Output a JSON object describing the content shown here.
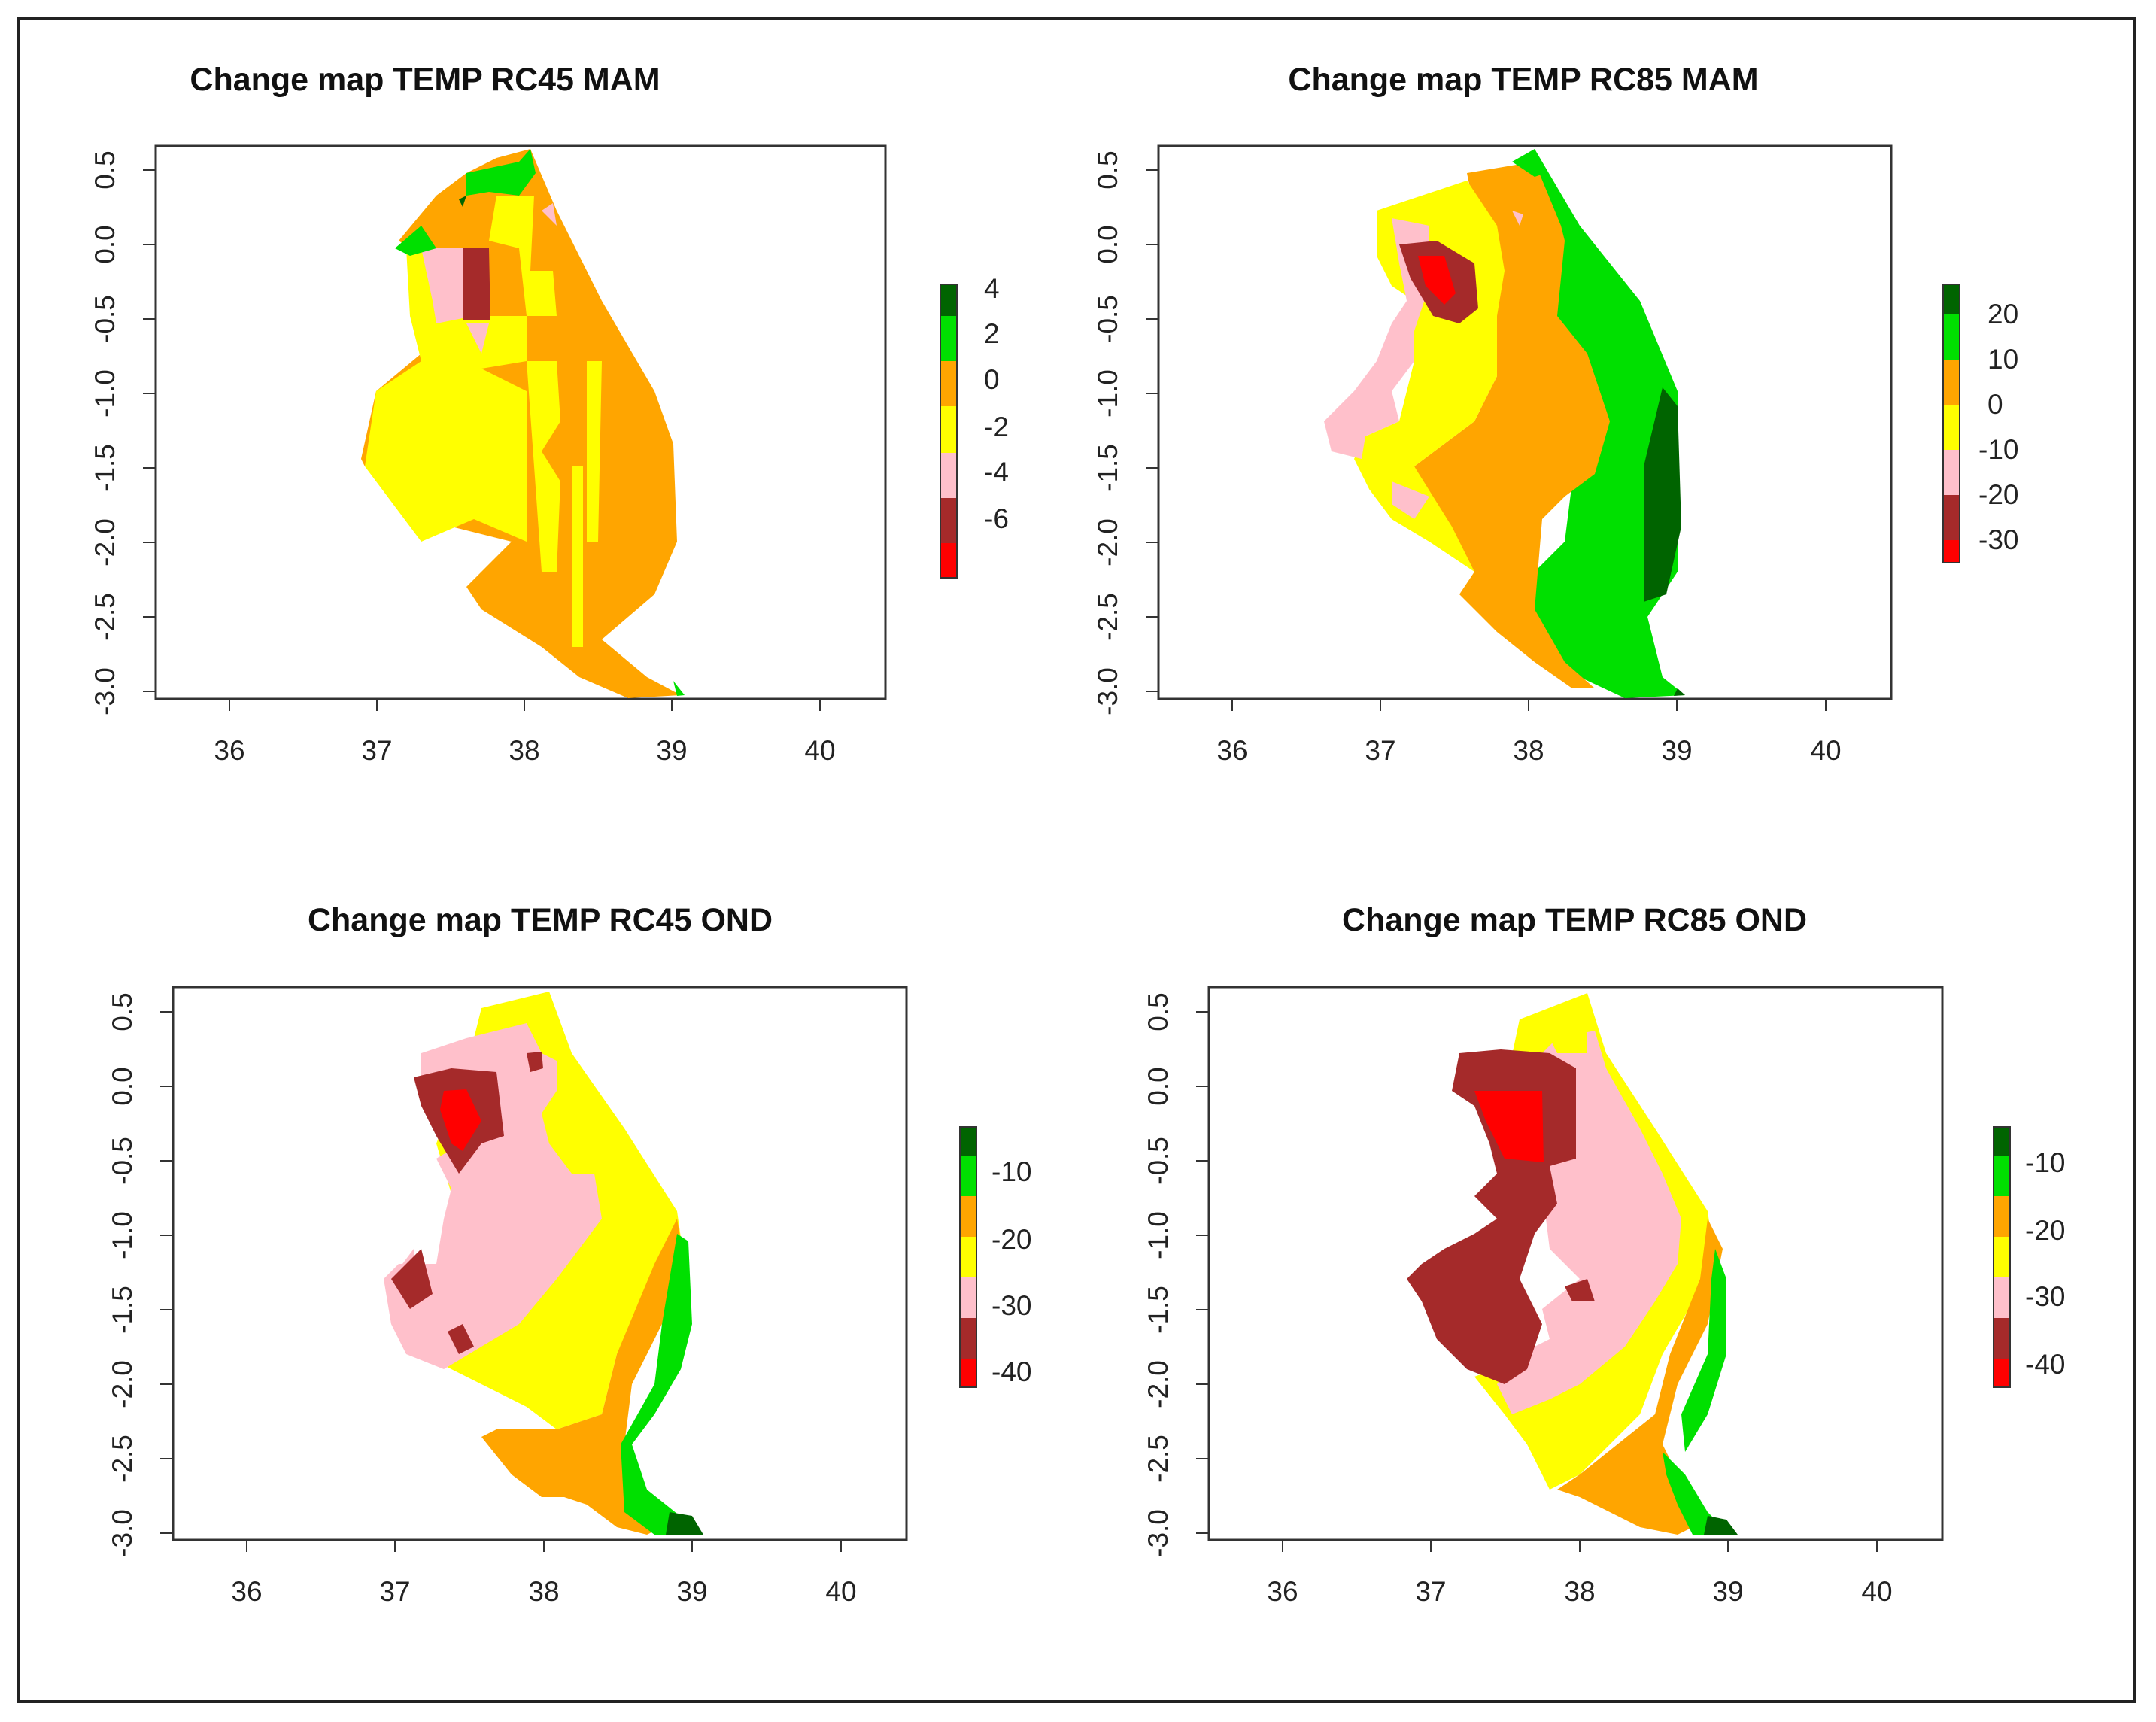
{
  "figure": {
    "description_free": true,
    "panels": [
      {
        "id": "rc45-mam",
        "title": "Change map TEMP RC45 MAM",
        "x_ticks": [
          "36",
          "37",
          "38",
          "39",
          "40"
        ],
        "y_ticks": [
          "0.5",
          "0.0",
          "-0.5",
          "-1.0",
          "-1.5",
          "-2.0",
          "-2.5",
          "-3.0"
        ],
        "legend_labels": [
          "4",
          "2",
          "0",
          "-2",
          "-4",
          "-6"
        ],
        "legend_colors": [
          "#006400",
          "#00e000",
          "#ffa500",
          "#ffff00",
          "#ffc0cb",
          "#a52a2a",
          "#ff0000"
        ]
      },
      {
        "id": "rc85-mam",
        "title": "Change map TEMP RC85 MAM",
        "x_ticks": [
          "36",
          "37",
          "38",
          "39",
          "40"
        ],
        "y_ticks": [
          "0.5",
          "0.0",
          "-0.5",
          "-1.0",
          "-1.5",
          "-2.0",
          "-2.5",
          "-3.0"
        ],
        "legend_labels": [
          "20",
          "10",
          "0",
          "-10",
          "-20",
          "-30"
        ],
        "legend_colors": [
          "#006400",
          "#00e000",
          "#ffa500",
          "#ffff00",
          "#ffc0cb",
          "#a52a2a",
          "#ff0000"
        ]
      },
      {
        "id": "rc45-ond",
        "title": "Change map TEMP RC45 OND",
        "x_ticks": [
          "36",
          "37",
          "38",
          "39",
          "40"
        ],
        "y_ticks": [
          "0.5",
          "0.0",
          "-0.5",
          "-1.0",
          "-1.5",
          "-2.0",
          "-2.5",
          "-3.0"
        ],
        "legend_labels": [
          "-10",
          "-20",
          "-30",
          "-40"
        ],
        "legend_colors": [
          "#006400",
          "#00e000",
          "#ffa500",
          "#ffff00",
          "#ffc0cb",
          "#a52a2a",
          "#ff0000"
        ]
      },
      {
        "id": "rc85-ond",
        "title": "Change map TEMP RC85 OND",
        "x_ticks": [
          "36",
          "37",
          "38",
          "39",
          "40"
        ],
        "y_ticks": [
          "0.5",
          "0.0",
          "-0.5",
          "-1.0",
          "-1.5",
          "-2.0",
          "-2.5",
          "-3.0"
        ],
        "legend_labels": [
          "-10",
          "-20",
          "-30",
          "-40"
        ],
        "legend_colors": [
          "#006400",
          "#00e000",
          "#ffa500",
          "#ffff00",
          "#ffc0cb",
          "#a52a2a",
          "#ff0000"
        ]
      }
    ]
  },
  "palette": {
    "dark_green": "#006400",
    "green": "#00e000",
    "orange": "#ffa500",
    "yellow": "#ffff00",
    "pink": "#ffc0cb",
    "brown": "#a52a2a",
    "red": "#ff0000"
  }
}
